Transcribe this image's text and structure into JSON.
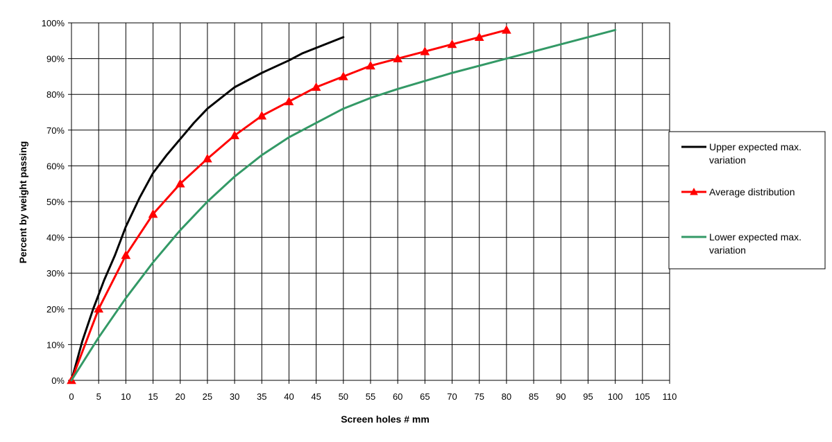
{
  "chart_data": {
    "type": "line",
    "title": "",
    "xlabel": "Screen holes #  mm",
    "ylabel": "Percent by weight passing",
    "xlim": [
      0,
      110
    ],
    "ylim": [
      0,
      100
    ],
    "x_ticks": [
      0,
      5,
      10,
      15,
      20,
      25,
      30,
      35,
      40,
      45,
      50,
      55,
      60,
      65,
      70,
      75,
      80,
      85,
      90,
      95,
      100,
      105,
      110
    ],
    "y_ticks": [
      "0%",
      "10%",
      "20%",
      "30%",
      "40%",
      "50%",
      "60%",
      "70%",
      "80%",
      "90%",
      "100%"
    ],
    "grid": true,
    "legend_position": "right",
    "series": [
      {
        "name": "Upper expected max. variation",
        "color": "#000000",
        "marker": "none",
        "points": [
          [
            0,
            0
          ],
          [
            2,
            11
          ],
          [
            4,
            20
          ],
          [
            6,
            28
          ],
          [
            8,
            35
          ],
          [
            10,
            43
          ],
          [
            12.5,
            51
          ],
          [
            15,
            58
          ],
          [
            17.5,
            63
          ],
          [
            20,
            67.5
          ],
          [
            22.5,
            72
          ],
          [
            25,
            76
          ],
          [
            30,
            82
          ],
          [
            35,
            86
          ],
          [
            40,
            89.5
          ],
          [
            42.5,
            91.5
          ],
          [
            45,
            93
          ],
          [
            50,
            96
          ]
        ]
      },
      {
        "name": "Average distribution",
        "color": "#ff0000",
        "marker": "triangle",
        "points": [
          [
            0,
            0
          ],
          [
            5,
            20
          ],
          [
            10,
            35
          ],
          [
            15,
            46.5
          ],
          [
            20,
            55
          ],
          [
            25,
            62
          ],
          [
            30,
            68.5
          ],
          [
            35,
            74
          ],
          [
            40,
            78
          ],
          [
            45,
            82
          ],
          [
            50,
            85
          ],
          [
            55,
            88
          ],
          [
            60,
            90
          ],
          [
            65,
            92
          ],
          [
            70,
            94
          ],
          [
            75,
            96
          ],
          [
            80,
            98
          ]
        ]
      },
      {
        "name": "Lower expected max. variation",
        "color": "#339966",
        "marker": "none",
        "points": [
          [
            0,
            0
          ],
          [
            5,
            12
          ],
          [
            10,
            23
          ],
          [
            15,
            33
          ],
          [
            20,
            42
          ],
          [
            25,
            50
          ],
          [
            30,
            57
          ],
          [
            35,
            63
          ],
          [
            40,
            68
          ],
          [
            45,
            72
          ],
          [
            50,
            76
          ],
          [
            55,
            79
          ],
          [
            60,
            81.5
          ],
          [
            70,
            86
          ],
          [
            80,
            90
          ],
          [
            90,
            94
          ],
          [
            100,
            98
          ]
        ]
      }
    ]
  }
}
